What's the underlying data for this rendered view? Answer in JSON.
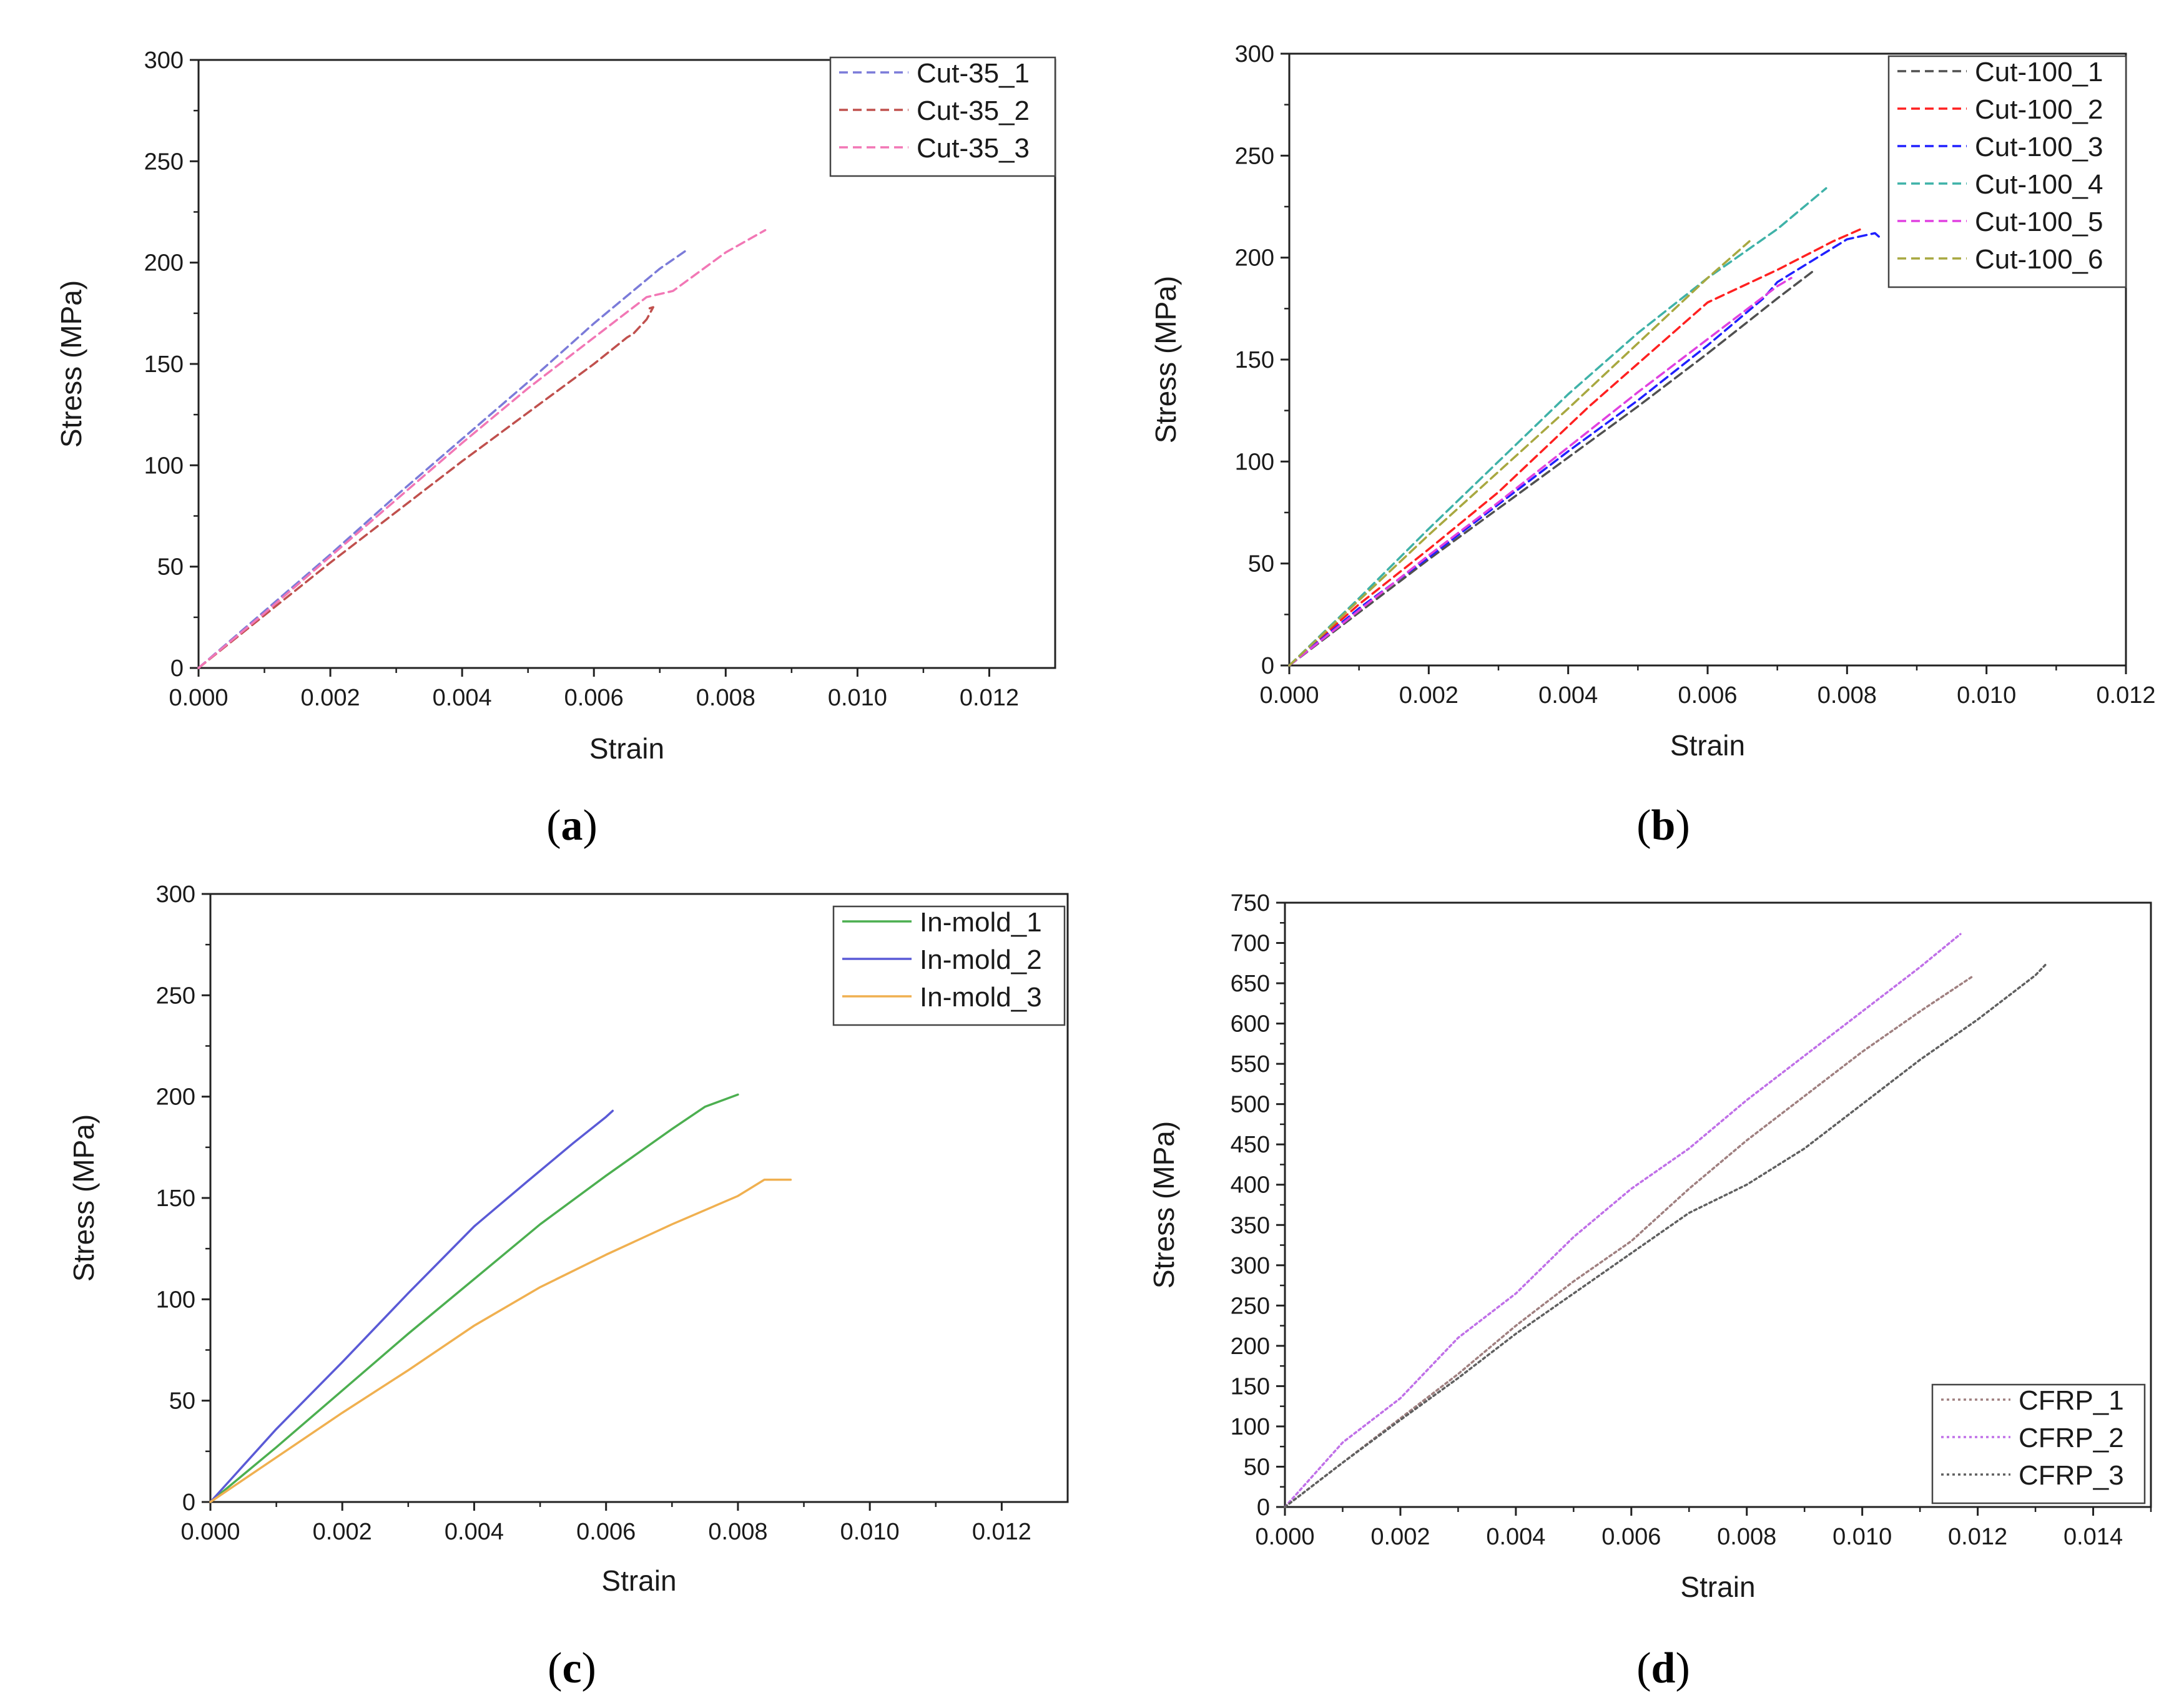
{
  "chart_data": [
    {
      "type": "line",
      "id": "a",
      "caption_letter": "a",
      "xlabel": "Strain",
      "ylabel": "Stress (MPa)",
      "xlim": [
        0,
        0.013
      ],
      "ylim": [
        0,
        300
      ],
      "xticks": [
        0,
        0.002,
        0.004,
        0.006,
        0.008,
        0.01,
        0.012
      ],
      "xtick_labels": [
        "0.000",
        "0.002",
        "0.004",
        "0.006",
        "0.008",
        "0.010",
        "0.012"
      ],
      "yticks": [
        0,
        50,
        100,
        150,
        200,
        250,
        300
      ],
      "ytick_labels": [
        "0",
        "50",
        "100",
        "150",
        "200",
        "250",
        "300"
      ],
      "legend_position": "top-right",
      "series": [
        {
          "name": "Cut-35_1",
          "color": "#7b7bd9",
          "dash": "dashed",
          "x": [
            0,
            0.001,
            0.002,
            0.003,
            0.004,
            0.005,
            0.006,
            0.007,
            0.0074
          ],
          "y": [
            0,
            28,
            56,
            85,
            113,
            141,
            170,
            197,
            206
          ]
        },
        {
          "name": "Cut-35_2",
          "color": "#c0504d",
          "dash": "dashed",
          "x": [
            0,
            0.001,
            0.002,
            0.003,
            0.004,
            0.005,
            0.006,
            0.0065,
            0.0066,
            0.0068,
            0.0069,
            0.0068
          ],
          "y": [
            0,
            26,
            52,
            77,
            102,
            126,
            150,
            163,
            165,
            172,
            178,
            177
          ]
        },
        {
          "name": "Cut-35_3",
          "color": "#f277b5",
          "dash": "dashed",
          "x": [
            0,
            0.001,
            0.002,
            0.003,
            0.004,
            0.005,
            0.006,
            0.0068,
            0.0072,
            0.008,
            0.0086
          ],
          "y": [
            0,
            27,
            55,
            83,
            111,
            138,
            163,
            183,
            186,
            205,
            216
          ]
        }
      ]
    },
    {
      "type": "line",
      "id": "b",
      "caption_letter": "b",
      "xlabel": "Strain",
      "ylabel": "Stress (MPa)",
      "xlim": [
        0,
        0.012
      ],
      "ylim": [
        0,
        300
      ],
      "xticks": [
        0,
        0.002,
        0.004,
        0.006,
        0.008,
        0.01,
        0.012
      ],
      "xtick_labels": [
        "0.000",
        "0.002",
        "0.004",
        "0.006",
        "0.008",
        "0.010",
        "0.012"
      ],
      "yticks": [
        0,
        50,
        100,
        150,
        200,
        250,
        300
      ],
      "ytick_labels": [
        "0",
        "50",
        "100",
        "150",
        "200",
        "250",
        "300"
      ],
      "legend_position": "top-right",
      "series": [
        {
          "name": "Cut-100_1",
          "color": "#505050",
          "dash": "dashed",
          "x": [
            0,
            0.001,
            0.002,
            0.003,
            0.004,
            0.005,
            0.006,
            0.007,
            0.0075
          ],
          "y": [
            0,
            26,
            52,
            77,
            102,
            127,
            153,
            180,
            193
          ]
        },
        {
          "name": "Cut-100_2",
          "color": "#ff2020",
          "dash": "dashed",
          "x": [
            0,
            0.001,
            0.002,
            0.003,
            0.0043,
            0.005,
            0.006,
            0.007,
            0.0078,
            0.0082
          ],
          "y": [
            0,
            30,
            57,
            85,
            127,
            148,
            178,
            194,
            208,
            214
          ]
        },
        {
          "name": "Cut-100_3",
          "color": "#2020ff",
          "dash": "dashed",
          "x": [
            0,
            0.001,
            0.002,
            0.003,
            0.004,
            0.005,
            0.006,
            0.0068,
            0.007,
            0.008,
            0.0084,
            0.0085
          ],
          "y": [
            0,
            28,
            53,
            79,
            105,
            130,
            157,
            180,
            188,
            209,
            212,
            209
          ]
        },
        {
          "name": "Cut-100_4",
          "color": "#3fb2a8",
          "dash": "dashed",
          "x": [
            0,
            0.001,
            0.002,
            0.003,
            0.004,
            0.005,
            0.006,
            0.007,
            0.0077
          ],
          "y": [
            0,
            33,
            67,
            100,
            133,
            163,
            190,
            214,
            234
          ]
        },
        {
          "name": "Cut-100_5",
          "color": "#e040e0",
          "dash": "dashed",
          "x": [
            0,
            0.001,
            0.002,
            0.003,
            0.004,
            0.005,
            0.006,
            0.007,
            0.0072
          ],
          "y": [
            0,
            27,
            54,
            80,
            107,
            134,
            160,
            186,
            190
          ]
        },
        {
          "name": "Cut-100_6",
          "color": "#a8a840",
          "dash": "dashed",
          "x": [
            0,
            0.001,
            0.002,
            0.003,
            0.004,
            0.005,
            0.006,
            0.0066
          ],
          "y": [
            0,
            32,
            64,
            95,
            126,
            158,
            190,
            208
          ]
        }
      ]
    },
    {
      "type": "line",
      "id": "c",
      "caption_letter": "c",
      "xlabel": "Strain",
      "ylabel": "Stress (MPa)",
      "xlim": [
        0,
        0.013
      ],
      "ylim": [
        0,
        300
      ],
      "xticks": [
        0,
        0.002,
        0.004,
        0.006,
        0.008,
        0.01,
        0.012
      ],
      "xtick_labels": [
        "0.000",
        "0.002",
        "0.004",
        "0.006",
        "0.008",
        "0.010",
        "0.012"
      ],
      "yticks": [
        0,
        50,
        100,
        150,
        200,
        250,
        300
      ],
      "ytick_labels": [
        "0",
        "50",
        "100",
        "150",
        "200",
        "250",
        "300"
      ],
      "legend_position": "top-right",
      "series": [
        {
          "name": "In-mold_1",
          "color": "#4caf50",
          "dash": "solid",
          "x": [
            0,
            0.001,
            0.002,
            0.003,
            0.004,
            0.005,
            0.006,
            0.007,
            0.0075,
            0.008
          ],
          "y": [
            0,
            27,
            55,
            83,
            110,
            137,
            161,
            184,
            195,
            201
          ]
        },
        {
          "name": "In-mold_2",
          "color": "#5a5ad6",
          "dash": "solid",
          "x": [
            0,
            0.001,
            0.002,
            0.003,
            0.004,
            0.0048,
            0.0055,
            0.006,
            0.0061
          ],
          "y": [
            0,
            36,
            69,
            103,
            136,
            158,
            177,
            190,
            193
          ]
        },
        {
          "name": "In-mold_3",
          "color": "#f0b050",
          "dash": "solid",
          "x": [
            0,
            0.001,
            0.002,
            0.003,
            0.004,
            0.005,
            0.006,
            0.007,
            0.008,
            0.0084,
            0.0088
          ],
          "y": [
            0,
            22,
            44,
            65,
            87,
            106,
            122,
            137,
            151,
            159,
            159
          ]
        }
      ]
    },
    {
      "type": "line",
      "id": "d",
      "caption_letter": "d",
      "xlabel": "Strain",
      "ylabel": "Stress (MPa)",
      "xlim": [
        0,
        0.015
      ],
      "ylim": [
        0,
        750
      ],
      "xticks": [
        0,
        0.002,
        0.004,
        0.006,
        0.008,
        0.01,
        0.012,
        0.014
      ],
      "xtick_labels": [
        "0.000",
        "0.002",
        "0.004",
        "0.006",
        "0.008",
        "0.010",
        "0.012",
        "0.014"
      ],
      "yticks": [
        0,
        50,
        100,
        150,
        200,
        250,
        300,
        350,
        400,
        450,
        500,
        550,
        600,
        650,
        700,
        750
      ],
      "ytick_labels": [
        "0",
        "50",
        "100",
        "150",
        "200",
        "250",
        "300",
        "350",
        "400",
        "450",
        "500",
        "550",
        "600",
        "650",
        "700",
        "750"
      ],
      "legend_position": "bottom-right",
      "series": [
        {
          "name": "CFRP_1",
          "color": "#a08080",
          "dash": "dotted",
          "x": [
            0,
            0.001,
            0.002,
            0.003,
            0.004,
            0.005,
            0.006,
            0.007,
            0.008,
            0.009,
            0.01,
            0.011,
            0.0119
          ],
          "y": [
            0,
            55,
            110,
            165,
            225,
            280,
            330,
            395,
            455,
            510,
            565,
            615,
            658
          ]
        },
        {
          "name": "CFRP_2",
          "color": "#c070e8",
          "dash": "dotted",
          "x": [
            0,
            0.001,
            0.002,
            0.003,
            0.004,
            0.005,
            0.006,
            0.007,
            0.008,
            0.009,
            0.01,
            0.011,
            0.0117
          ],
          "y": [
            0,
            80,
            135,
            210,
            265,
            335,
            395,
            445,
            505,
            560,
            615,
            670,
            711
          ]
        },
        {
          "name": "CFRP_3",
          "color": "#606060",
          "dash": "dotted",
          "x": [
            0,
            0.001,
            0.002,
            0.003,
            0.004,
            0.005,
            0.006,
            0.007,
            0.008,
            0.009,
            0.01,
            0.011,
            0.012,
            0.013,
            0.0132
          ],
          "y": [
            0,
            55,
            108,
            160,
            215,
            265,
            315,
            365,
            400,
            445,
            500,
            555,
            605,
            660,
            675
          ]
        }
      ]
    }
  ]
}
